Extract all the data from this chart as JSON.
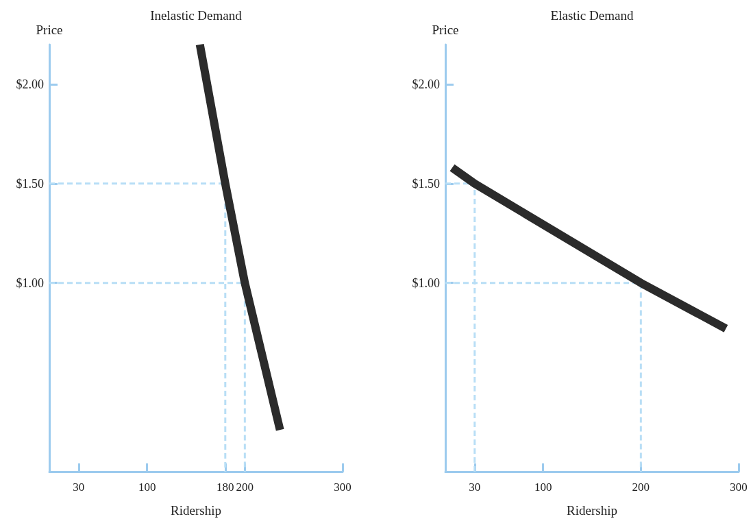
{
  "chart_data": [
    {
      "type": "line",
      "title": "Inelastic Demand",
      "xlabel": "Ridership",
      "ylabel": "Price",
      "xlim": [
        0,
        300
      ],
      "xticks": [
        30,
        100,
        180,
        200,
        300
      ],
      "ylim": [
        0.05,
        2.2
      ],
      "yticks": [
        {
          "value": 1,
          "label": "$1.00"
        },
        {
          "value": 1.5,
          "label": "$1.50"
        },
        {
          "value": 2,
          "label": "$2.00"
        }
      ],
      "grid": false,
      "marker": "none",
      "line_style": "solid",
      "series": [
        {
          "color": "#b8def6",
          "line_style": "dashed",
          "x": [
            0,
            180,
            180
          ],
          "values": [
            1.5,
            1.5,
            0.05
          ]
        },
        {
          "color": "#b8def6",
          "line_style": "dashed",
          "x": [
            0,
            200,
            200
          ],
          "values": [
            1.0,
            1.0,
            0.05
          ]
        },
        {
          "color": "#2b2b2b",
          "x": [
            154,
            180,
            200,
            236
          ],
          "values": [
            2.2,
            1.5,
            1.0,
            0.26
          ]
        }
      ]
    },
    {
      "type": "line",
      "title": "Elastic Demand",
      "xlabel": "Ridership",
      "ylabel": "Price",
      "xlim": [
        0,
        300
      ],
      "xticks": [
        30,
        100,
        200,
        300
      ],
      "ylim": [
        0.05,
        2.2
      ],
      "yticks": [
        {
          "value": 1,
          "label": "$1.00"
        },
        {
          "value": 1.5,
          "label": "$1.50"
        },
        {
          "value": 2,
          "label": "$2.00"
        }
      ],
      "grid": false,
      "marker": "none",
      "line_style": "solid",
      "series": [
        {
          "color": "#b8def6",
          "line_style": "dashed",
          "x": [
            0,
            30,
            30
          ],
          "values": [
            1.5,
            1.5,
            0.05
          ]
        },
        {
          "color": "#b8def6",
          "line_style": "dashed",
          "x": [
            0,
            200,
            200
          ],
          "values": [
            1.0,
            1.0,
            0.05
          ]
        },
        {
          "color": "#2b2b2b",
          "x": [
            7,
            30,
            200,
            287
          ],
          "values": [
            1.58,
            1.5,
            1.0,
            0.77
          ]
        }
      ]
    }
  ]
}
